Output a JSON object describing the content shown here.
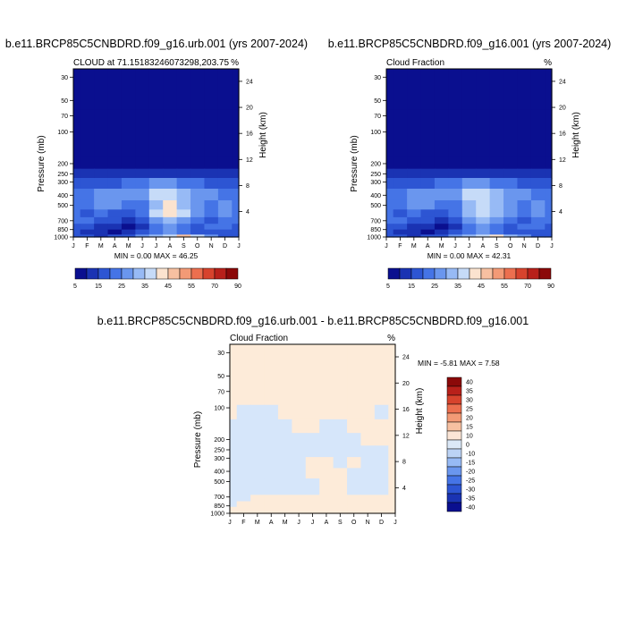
{
  "chart_data": [
    {
      "type": "heatmap",
      "title": "b.e11.BRCP85C5CNBDRD.f09_g16.urb.001 (yrs 2007-2024)",
      "subtitle": "CLOUD at 71.15183246073298,203.75",
      "unit": "%",
      "ylabel": "Pressure (mb)",
      "y2label": "Height (km)",
      "stats": "MIN =   0.00 MAX =  46.25",
      "x_ticks": [
        "J",
        "F",
        "M",
        "A",
        "M",
        "J",
        "J",
        "A",
        "S",
        "O",
        "N",
        "D",
        "J"
      ],
      "pressure_ticks": [
        30,
        50,
        70,
        100,
        200,
        250,
        300,
        400,
        500,
        700,
        850,
        1000
      ],
      "height_ticks": [
        24,
        20,
        16,
        12,
        8,
        4
      ],
      "ylim": [
        25,
        1000
      ],
      "colorbar_labels": [
        "5",
        "15",
        "25",
        "35",
        "45",
        "55",
        "70",
        "90"
      ],
      "grid": {
        "pressure": [
          25,
          150,
          200,
          250,
          300,
          400,
          500,
          600,
          700,
          800,
          900,
          1000
        ],
        "values": [
          [
            0.5,
            0.5,
            0.5,
            0.5,
            0.5,
            0.5,
            0.5,
            0.5,
            0.5,
            0.5,
            0.5,
            0.5,
            0.5
          ],
          [
            0.5,
            0.5,
            0.5,
            0.5,
            0.5,
            0.5,
            0.5,
            0.5,
            0.5,
            0.5,
            0.5,
            0.5,
            0.5
          ],
          [
            3,
            3,
            3,
            3,
            3,
            3,
            3,
            3,
            3,
            3,
            3,
            3,
            3
          ],
          [
            6,
            6,
            6,
            7,
            7,
            8,
            9,
            9,
            8,
            7,
            7,
            6,
            6
          ],
          [
            12,
            12,
            13,
            14,
            15,
            16,
            20,
            22,
            18,
            15,
            14,
            13,
            12
          ],
          [
            18,
            17,
            20,
            22,
            20,
            22,
            32,
            34,
            28,
            22,
            20,
            18,
            17
          ],
          [
            16,
            16,
            20,
            22,
            18,
            18,
            28,
            36,
            28,
            21,
            18,
            20,
            16
          ],
          [
            15,
            14,
            17,
            14,
            12,
            18,
            30,
            35,
            30,
            20,
            17,
            20,
            16
          ],
          [
            16,
            15,
            12,
            10,
            9,
            12,
            20,
            26,
            20,
            16,
            14,
            16,
            15
          ],
          [
            12,
            10,
            8,
            5,
            4,
            8,
            15,
            24,
            18,
            14,
            16,
            15,
            12
          ],
          [
            10,
            8,
            5,
            4,
            5,
            12,
            18,
            22,
            16,
            12,
            14,
            14,
            10
          ],
          [
            14,
            10,
            8,
            10,
            14,
            22,
            28,
            34,
            44,
            30,
            22,
            14,
            12
          ]
        ]
      }
    },
    {
      "type": "heatmap",
      "title": "b.e11.BRCP85C5CNBDRD.f09_g16.001 (yrs 2007-2024)",
      "subtitle": "Cloud Fraction",
      "unit": "%",
      "ylabel": "Pressure (mb)",
      "y2label": "Height (km)",
      "stats": "MIN =   0.00 MAX =  42.31",
      "x_ticks": [
        "J",
        "F",
        "M",
        "A",
        "M",
        "J",
        "J",
        "A",
        "S",
        "O",
        "N",
        "D",
        "J"
      ],
      "pressure_ticks": [
        30,
        50,
        70,
        100,
        200,
        250,
        300,
        400,
        500,
        700,
        850,
        1000
      ],
      "height_ticks": [
        24,
        20,
        16,
        12,
        8,
        4
      ],
      "ylim": [
        25,
        1000
      ],
      "colorbar_labels": [
        "5",
        "15",
        "25",
        "35",
        "45",
        "55",
        "70",
        "90"
      ],
      "grid": {
        "pressure": [
          25,
          150,
          200,
          250,
          300,
          400,
          500,
          600,
          700,
          800,
          900,
          1000
        ],
        "values": [
          [
            0.5,
            0.5,
            0.5,
            0.5,
            0.5,
            0.5,
            0.5,
            0.5,
            0.5,
            0.5,
            0.5,
            0.5,
            0.5
          ],
          [
            0.5,
            0.5,
            0.5,
            0.5,
            0.5,
            0.5,
            0.5,
            0.5,
            0.5,
            0.5,
            0.5,
            0.5,
            0.5
          ],
          [
            3,
            3,
            3,
            3,
            3,
            3,
            3,
            3,
            3,
            3,
            3,
            3,
            3
          ],
          [
            6,
            6,
            6,
            7,
            7,
            8,
            9,
            9,
            8,
            7,
            7,
            6,
            6
          ],
          [
            13,
            12,
            13,
            14,
            15,
            17,
            20,
            22,
            19,
            16,
            14,
            13,
            13
          ],
          [
            18,
            17,
            20,
            22,
            21,
            23,
            31,
            33,
            27,
            22,
            20,
            18,
            17
          ],
          [
            16,
            16,
            21,
            21,
            18,
            18,
            28,
            34,
            28,
            22,
            18,
            20,
            16
          ],
          [
            15,
            14,
            16,
            14,
            12,
            17,
            29,
            34,
            29,
            21,
            17,
            20,
            16
          ],
          [
            16,
            15,
            12,
            10,
            9,
            12,
            20,
            25,
            21,
            16,
            14,
            16,
            15
          ],
          [
            12,
            10,
            8,
            5,
            4,
            9,
            15,
            23,
            18,
            14,
            16,
            15,
            12
          ],
          [
            10,
            8,
            5,
            4,
            5,
            12,
            18,
            22,
            16,
            12,
            14,
            14,
            10
          ],
          [
            14,
            10,
            8,
            10,
            14,
            20,
            26,
            30,
            38,
            26,
            20,
            14,
            12
          ]
        ]
      }
    },
    {
      "type": "heatmap",
      "title": "b.e11.BRCP85C5CNBDRD.f09_g16.urb.001 - b.e11.BRCP85C5CNBDRD.f09_g16.001",
      "subtitle": "Cloud Fraction",
      "unit": "%",
      "ylabel": "Pressure (mb)",
      "y2label": "Height (km)",
      "stats": "MIN =  -5.81 MAX =   7.58",
      "x_ticks": [
        "J",
        "F",
        "M",
        "A",
        "M",
        "J",
        "J",
        "A",
        "S",
        "O",
        "N",
        "D",
        "J"
      ],
      "pressure_ticks": [
        30,
        50,
        70,
        100,
        200,
        250,
        300,
        400,
        500,
        700,
        850,
        1000
      ],
      "height_ticks": [
        24,
        20,
        16,
        12,
        8,
        4
      ],
      "ylim": [
        25,
        1000
      ],
      "colorbar_labels": [
        "40",
        "35",
        "30",
        "25",
        "20",
        "15",
        "10",
        "0",
        "-10",
        "-15",
        "-20",
        "-25",
        "-30",
        "-35",
        "-40"
      ],
      "grid": {
        "pressure": [
          25,
          80,
          110,
          150,
          200,
          260,
          330,
          420,
          520,
          620,
          720,
          820,
          920,
          1000
        ],
        "values": [
          [
            1,
            1,
            1,
            1,
            1,
            1,
            1,
            1,
            1,
            1,
            1,
            1,
            1
          ],
          [
            1,
            1,
            1,
            1,
            1,
            1,
            1,
            1,
            1,
            1,
            1,
            1,
            1
          ],
          [
            1,
            -1,
            -1,
            -1,
            1,
            1,
            1,
            1,
            1,
            1,
            1,
            -1,
            1
          ],
          [
            -1,
            -1,
            -1,
            -1,
            -1,
            1,
            1,
            -1,
            -1,
            1,
            1,
            1,
            1
          ],
          [
            -1,
            -1,
            -1,
            -1,
            -1,
            -1,
            -1,
            -1,
            -1,
            -1,
            1,
            1,
            1
          ],
          [
            -1,
            -1,
            -1,
            -1,
            -1,
            -1,
            -1,
            -1,
            -1,
            -1,
            -1,
            -1,
            1
          ],
          [
            -1,
            -1,
            -1,
            -1,
            -1,
            -1,
            1,
            1,
            -1,
            1,
            -1,
            -1,
            1
          ],
          [
            -1,
            -1,
            -1,
            -1,
            -1,
            -1,
            1,
            1,
            1,
            -1,
            -1,
            -1,
            1
          ],
          [
            -1,
            -1,
            -1,
            -1,
            -1,
            -1,
            -1,
            1,
            1,
            -1,
            -1,
            -1,
            1
          ],
          [
            -1,
            -1,
            -1,
            -1,
            -1,
            -1,
            -1,
            1,
            1,
            -1,
            -1,
            -1,
            1
          ],
          [
            -1,
            -1,
            1,
            1,
            1,
            1,
            1,
            1,
            1,
            1,
            1,
            1,
            1
          ],
          [
            -1,
            1,
            1,
            1,
            1,
            1,
            1,
            1,
            1,
            1,
            1,
            1,
            1
          ],
          [
            1,
            1,
            1,
            1,
            1,
            1,
            1,
            1,
            1,
            1,
            1,
            1,
            1
          ],
          [
            1,
            1,
            1,
            1,
            1,
            1,
            1,
            1,
            1,
            1,
            1,
            1,
            1
          ]
        ]
      }
    }
  ],
  "colors": {
    "sequential": [
      "#0a0f8f",
      "#1a33b3",
      "#2d55d3",
      "#4574e6",
      "#6a96ee",
      "#97baf5",
      "#c6dbf8",
      "#fbe3cf",
      "#f7c0a1",
      "#f39a76",
      "#ec6f4f",
      "#d7432d",
      "#b8201a",
      "#8b0909"
    ],
    "diverging": [
      "#8b0909",
      "#b8201a",
      "#d7432d",
      "#ec6f4f",
      "#f39a76",
      "#f7c0a1",
      "#fbe5d6",
      "#dbe8f7",
      "#bcd3f5",
      "#97baf5",
      "#6a96ee",
      "#4574e6",
      "#2d55d3",
      "#1a33b3",
      "#0a0f8f"
    ],
    "diff_positive": "#fdebd9",
    "diff_negative": "#d6e6fa"
  }
}
